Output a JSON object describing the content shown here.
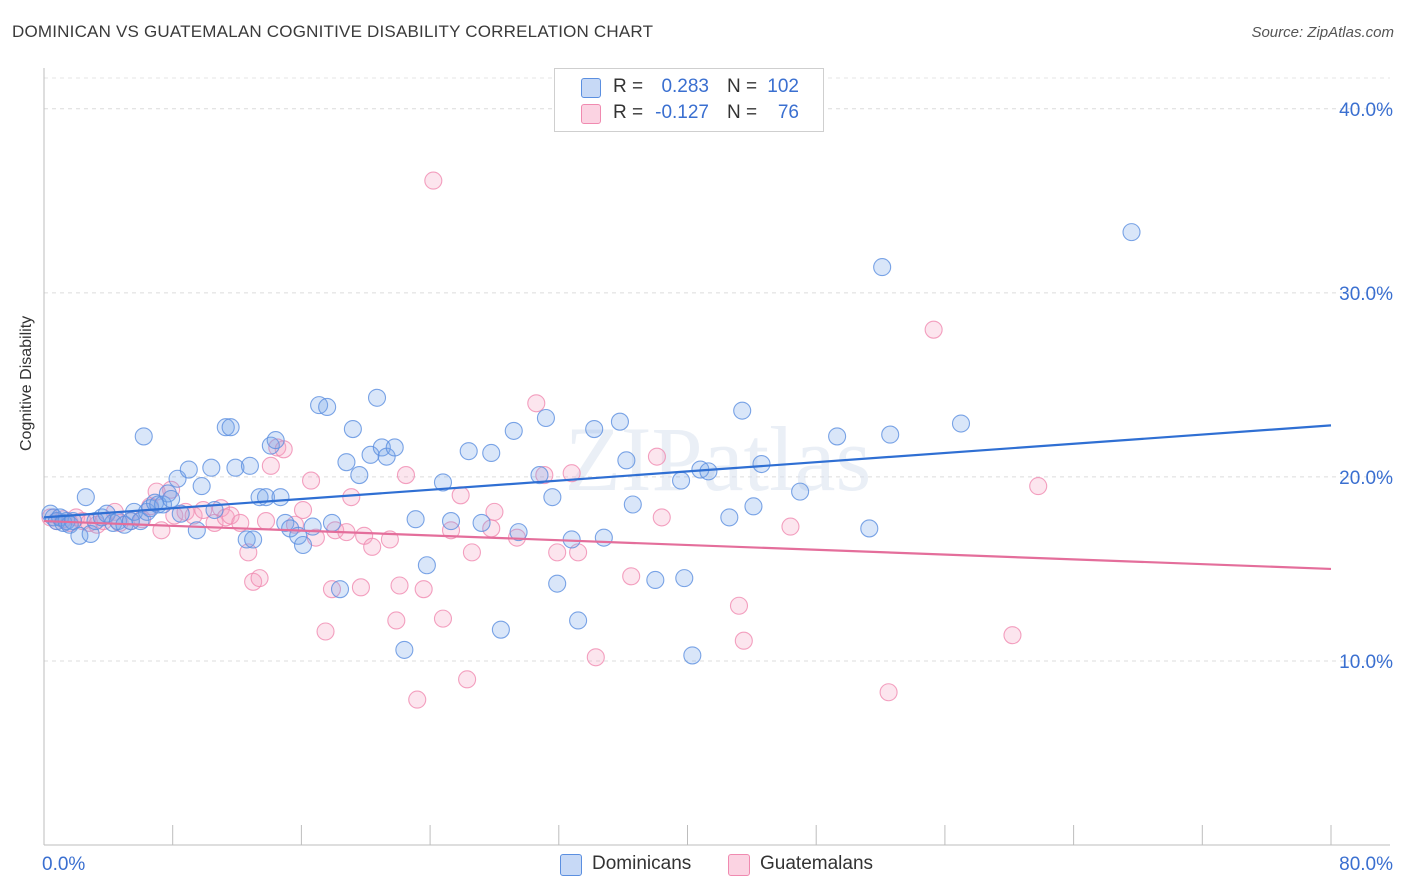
{
  "header": {
    "title": "DOMINICAN VS GUATEMALAN COGNITIVE DISABILITY CORRELATION CHART",
    "source": "Source: ZipAtlas.com"
  },
  "watermark": "ZIPatlas",
  "legend": {
    "rows": [
      {
        "r_label": "R =",
        "r_value": "0.283",
        "n_label": "N =",
        "n_value": "102",
        "color": "#5b8fe0"
      },
      {
        "r_label": "R =",
        "r_value": "-0.127",
        "n_label": "N =",
        "n_value": "76",
        "color": "#f08ab0"
      }
    ]
  },
  "bottom_legend": [
    "Dominicans",
    "Guatemalans"
  ],
  "chart_data": {
    "type": "scatter",
    "title": "DOMINICAN VS GUATEMALAN COGNITIVE DISABILITY CORRELATION CHART",
    "xlabel": "",
    "ylabel": "Cognitive Disability",
    "xlim": [
      0,
      80
    ],
    "ylim": [
      0,
      42
    ],
    "x_tick_labels": [
      "0.0%",
      "80.0%"
    ],
    "y_ticks": [
      10,
      20,
      30,
      40
    ],
    "y_tick_labels": [
      "10.0%",
      "20.0%",
      "30.0%",
      "40.0%"
    ],
    "grid": true,
    "legend_position": "top-center",
    "series": [
      {
        "name": "Dominicans",
        "color": "#5b8fe0",
        "trend": {
          "x": [
            0,
            80
          ],
          "y": [
            17.8,
            22.8
          ]
        },
        "points": [
          [
            0.4,
            18.0
          ],
          [
            0.6,
            17.8
          ],
          [
            0.8,
            17.6
          ],
          [
            1.0,
            17.8
          ],
          [
            1.2,
            17.5
          ],
          [
            1.4,
            17.6
          ],
          [
            1.6,
            17.4
          ],
          [
            1.8,
            17.6
          ],
          [
            2.2,
            16.8
          ],
          [
            2.6,
            18.9
          ],
          [
            2.9,
            16.9
          ],
          [
            3.2,
            17.6
          ],
          [
            3.6,
            17.8
          ],
          [
            3.9,
            18.0
          ],
          [
            4.3,
            17.5
          ],
          [
            4.6,
            17.6
          ],
          [
            5.0,
            17.4
          ],
          [
            5.4,
            17.6
          ],
          [
            5.6,
            18.1
          ],
          [
            6.0,
            17.6
          ],
          [
            6.2,
            22.2
          ],
          [
            6.4,
            18.1
          ],
          [
            6.6,
            18.3
          ],
          [
            6.9,
            18.6
          ],
          [
            7.1,
            18.5
          ],
          [
            7.4,
            18.5
          ],
          [
            7.7,
            19.1
          ],
          [
            7.9,
            18.8
          ],
          [
            8.3,
            19.9
          ],
          [
            8.5,
            18.0
          ],
          [
            9.0,
            20.4
          ],
          [
            9.5,
            17.1
          ],
          [
            9.8,
            19.5
          ],
          [
            10.4,
            20.5
          ],
          [
            10.6,
            18.2
          ],
          [
            11.3,
            22.7
          ],
          [
            11.6,
            22.7
          ],
          [
            11.9,
            20.5
          ],
          [
            12.6,
            16.6
          ],
          [
            12.8,
            20.6
          ],
          [
            13.0,
            16.6
          ],
          [
            13.4,
            18.9
          ],
          [
            13.8,
            18.9
          ],
          [
            14.1,
            21.7
          ],
          [
            14.4,
            22.0
          ],
          [
            14.7,
            18.9
          ],
          [
            15.0,
            17.5
          ],
          [
            15.3,
            17.2
          ],
          [
            15.8,
            16.8
          ],
          [
            16.1,
            16.3
          ],
          [
            16.7,
            17.3
          ],
          [
            17.1,
            23.9
          ],
          [
            17.6,
            23.8
          ],
          [
            17.9,
            17.5
          ],
          [
            18.4,
            13.9
          ],
          [
            18.8,
            20.8
          ],
          [
            19.2,
            22.6
          ],
          [
            19.6,
            20.1
          ],
          [
            20.3,
            21.2
          ],
          [
            20.7,
            24.3
          ],
          [
            21.0,
            21.6
          ],
          [
            21.3,
            21.1
          ],
          [
            21.8,
            21.6
          ],
          [
            22.4,
            10.6
          ],
          [
            23.1,
            17.7
          ],
          [
            23.8,
            15.2
          ],
          [
            24.8,
            19.7
          ],
          [
            25.3,
            17.6
          ],
          [
            26.4,
            21.4
          ],
          [
            27.2,
            17.5
          ],
          [
            27.8,
            21.3
          ],
          [
            28.4,
            11.7
          ],
          [
            29.2,
            22.5
          ],
          [
            29.5,
            17.0
          ],
          [
            30.8,
            20.1
          ],
          [
            31.2,
            23.2
          ],
          [
            31.6,
            18.9
          ],
          [
            31.9,
            14.2
          ],
          [
            32.8,
            16.6
          ],
          [
            33.2,
            12.2
          ],
          [
            34.2,
            22.6
          ],
          [
            34.8,
            16.7
          ],
          [
            35.8,
            23.0
          ],
          [
            36.2,
            20.9
          ],
          [
            36.6,
            18.5
          ],
          [
            38.0,
            14.4
          ],
          [
            39.8,
            14.5
          ],
          [
            39.6,
            19.8
          ],
          [
            40.3,
            10.3
          ],
          [
            40.8,
            20.4
          ],
          [
            41.3,
            20.3
          ],
          [
            42.6,
            17.8
          ],
          [
            43.4,
            23.6
          ],
          [
            44.1,
            18.4
          ],
          [
            44.6,
            20.7
          ],
          [
            47.0,
            19.2
          ],
          [
            49.3,
            22.2
          ],
          [
            51.3,
            17.2
          ],
          [
            52.1,
            31.4
          ],
          [
            52.6,
            22.3
          ],
          [
            57.0,
            22.9
          ],
          [
            67.6,
            33.3
          ]
        ]
      },
      {
        "name": "Guatemalans",
        "color": "#f08ab0",
        "trend": {
          "x": [
            0,
            80
          ],
          "y": [
            17.6,
            15.0
          ]
        },
        "points": [
          [
            0.4,
            17.8
          ],
          [
            0.8,
            17.6
          ],
          [
            1.2,
            17.7
          ],
          [
            1.6,
            17.5
          ],
          [
            2.0,
            17.8
          ],
          [
            2.4,
            17.6
          ],
          [
            2.8,
            17.5
          ],
          [
            3.3,
            17.4
          ],
          [
            3.7,
            17.6
          ],
          [
            4.4,
            18.1
          ],
          [
            4.7,
            17.5
          ],
          [
            5.4,
            17.6
          ],
          [
            6.1,
            17.7
          ],
          [
            6.6,
            18.4
          ],
          [
            7.0,
            19.2
          ],
          [
            7.3,
            17.1
          ],
          [
            7.9,
            19.3
          ],
          [
            8.1,
            17.9
          ],
          [
            8.8,
            18.1
          ],
          [
            9.3,
            17.9
          ],
          [
            9.9,
            18.2
          ],
          [
            10.6,
            17.5
          ],
          [
            11.0,
            18.3
          ],
          [
            11.3,
            17.8
          ],
          [
            11.6,
            17.9
          ],
          [
            12.2,
            17.5
          ],
          [
            12.7,
            15.9
          ],
          [
            13.0,
            14.3
          ],
          [
            13.4,
            14.5
          ],
          [
            13.8,
            17.6
          ],
          [
            14.1,
            20.6
          ],
          [
            14.5,
            21.6
          ],
          [
            14.9,
            21.5
          ],
          [
            15.6,
            17.4
          ],
          [
            16.1,
            18.2
          ],
          [
            16.6,
            19.8
          ],
          [
            16.9,
            16.7
          ],
          [
            17.5,
            11.6
          ],
          [
            17.9,
            13.9
          ],
          [
            18.1,
            17.1
          ],
          [
            18.8,
            17.0
          ],
          [
            19.1,
            18.9
          ],
          [
            19.7,
            14.0
          ],
          [
            19.9,
            16.8
          ],
          [
            20.4,
            16.2
          ],
          [
            21.5,
            16.6
          ],
          [
            21.9,
            12.2
          ],
          [
            22.1,
            14.1
          ],
          [
            22.5,
            20.1
          ],
          [
            23.2,
            7.9
          ],
          [
            23.6,
            13.9
          ],
          [
            24.2,
            36.1
          ],
          [
            24.8,
            12.3
          ],
          [
            25.3,
            17.1
          ],
          [
            25.9,
            19.0
          ],
          [
            26.3,
            9.0
          ],
          [
            26.6,
            15.9
          ],
          [
            27.8,
            17.2
          ],
          [
            28.0,
            18.1
          ],
          [
            29.4,
            16.7
          ],
          [
            30.6,
            24.0
          ],
          [
            31.1,
            20.1
          ],
          [
            31.9,
            15.9
          ],
          [
            32.8,
            20.2
          ],
          [
            33.2,
            15.9
          ],
          [
            34.3,
            10.2
          ],
          [
            36.5,
            14.6
          ],
          [
            38.1,
            21.1
          ],
          [
            38.4,
            17.8
          ],
          [
            43.2,
            13.0
          ],
          [
            43.5,
            11.1
          ],
          [
            46.4,
            17.3
          ],
          [
            52.5,
            8.3
          ],
          [
            55.3,
            28.0
          ],
          [
            60.2,
            11.4
          ],
          [
            61.8,
            19.5
          ]
        ]
      }
    ]
  }
}
